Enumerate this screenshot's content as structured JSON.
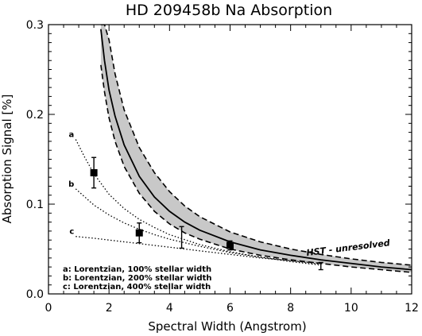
{
  "chart_data": {
    "type": "line",
    "title": "HD 209458b Na Absorption",
    "xlabel": "Spectral Width (Angstrom)",
    "ylabel": "Absorption Signal [%]",
    "xlim": [
      0,
      12
    ],
    "ylim": [
      0.0,
      0.3
    ],
    "x_ticks": [
      0,
      2,
      4,
      6,
      8,
      10,
      12
    ],
    "y_ticks": [
      0.0,
      0.1,
      0.2,
      0.3
    ],
    "y_tick_labels": [
      "0.0",
      "0.1",
      "0.2",
      "0.3"
    ],
    "model": {
      "x": [
        1.73,
        1.85,
        2.0,
        2.2,
        2.5,
        3.0,
        3.5,
        4.0,
        4.5,
        5.0,
        6.0,
        7.0,
        8.0,
        9.0,
        10.0,
        11.0,
        12.0
      ],
      "center": [
        0.295,
        0.26,
        0.227,
        0.198,
        0.166,
        0.131,
        0.108,
        0.092,
        0.08,
        0.071,
        0.058,
        0.049,
        0.043,
        0.038,
        0.034,
        0.03,
        0.027
      ],
      "upper": [
        0.3,
        0.3,
        0.283,
        0.245,
        0.205,
        0.163,
        0.135,
        0.114,
        0.098,
        0.086,
        0.069,
        0.058,
        0.05,
        0.044,
        0.039,
        0.035,
        0.032
      ],
      "lower": [
        0.255,
        0.225,
        0.196,
        0.17,
        0.142,
        0.112,
        0.092,
        0.078,
        0.068,
        0.061,
        0.05,
        0.043,
        0.038,
        0.034,
        0.03,
        0.027,
        0.024
      ]
    },
    "lorentzian_curves": [
      {
        "label": "a",
        "x": [
          0.9,
          1.2,
          1.5,
          2.0,
          2.5,
          3.0,
          3.5,
          4.0,
          5.0,
          6.0,
          7.0,
          8.0,
          9.0
        ],
        "y": [
          0.172,
          0.152,
          0.134,
          0.111,
          0.095,
          0.083,
          0.074,
          0.066,
          0.055,
          0.047,
          0.041,
          0.036,
          0.032
        ]
      },
      {
        "label": "b",
        "x": [
          0.9,
          1.5,
          2.0,
          2.5,
          3.0,
          3.5,
          4.0,
          5.0,
          6.0,
          7.0,
          8.0,
          9.0
        ],
        "y": [
          0.117,
          0.099,
          0.088,
          0.079,
          0.072,
          0.066,
          0.061,
          0.053,
          0.046,
          0.041,
          0.037,
          0.033
        ]
      },
      {
        "label": "c",
        "x": [
          0.9,
          1.5,
          2.0,
          3.0,
          4.0,
          5.0,
          6.0,
          7.0,
          8.0,
          9.0
        ],
        "y": [
          0.064,
          0.062,
          0.06,
          0.056,
          0.052,
          0.048,
          0.044,
          0.04,
          0.037,
          0.034
        ]
      }
    ],
    "measurements": [
      {
        "x": 1.5,
        "y": 0.135,
        "err": 0.017,
        "marker": "square"
      },
      {
        "x": 3.0,
        "y": 0.068,
        "err": 0.011,
        "marker": "square"
      },
      {
        "x": 4.4,
        "y": 0.063,
        "err": 0.012,
        "marker": "none"
      },
      {
        "x": 6.0,
        "y": 0.054,
        "err": 0.005,
        "marker": "square"
      },
      {
        "x": 9.0,
        "y": 0.031,
        "err": 0.004,
        "marker": "none"
      }
    ],
    "annotation": "HST - unresolved",
    "legend": [
      "a: Lorentzian, 100% stellar width",
      "b: Lorentzian, 200% stellar width",
      "c: Lorentzian, 400% stellar width"
    ],
    "legend_position": "bottom-left",
    "grid": false
  }
}
